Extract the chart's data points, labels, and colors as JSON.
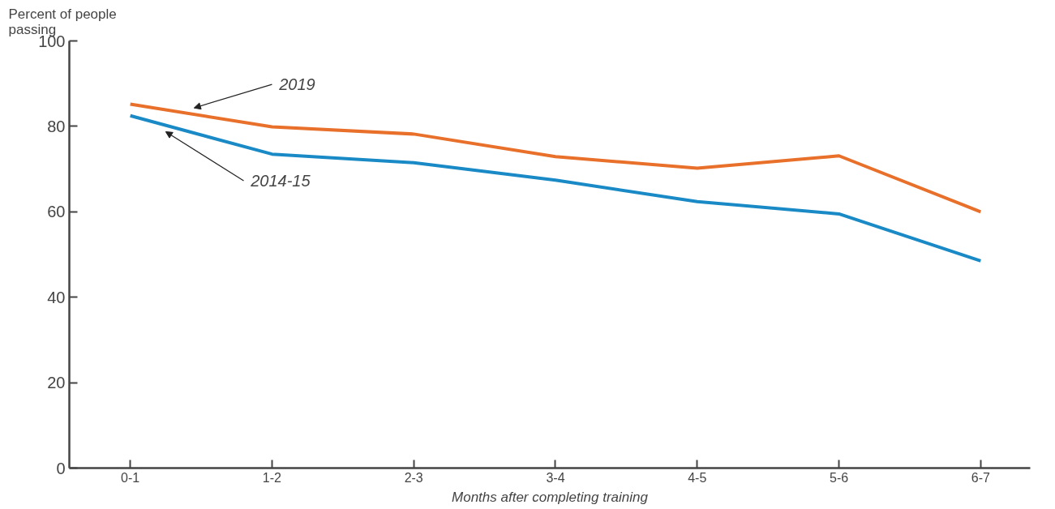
{
  "chart_data": {
    "type": "line",
    "xlabel": "Months after completing training",
    "ylabel": "Percent of people\npassing",
    "categories": [
      "0-1",
      "1-2",
      "2-3",
      "3-4",
      "4-5",
      "5-6",
      "6-7"
    ],
    "ylim": [
      0,
      100
    ],
    "yticks": [
      0,
      20,
      40,
      60,
      80,
      100
    ],
    "grid": false,
    "marker": "none",
    "line_style": "solid",
    "series": [
      {
        "name": "2019",
        "color": "#e8702a",
        "values": [
          85.2,
          79.9,
          78.2,
          72.9,
          70.2,
          73.1,
          60.0
        ]
      },
      {
        "name": "2014-15",
        "color": "#1a8ac6",
        "values": [
          82.5,
          73.5,
          71.5,
          67.4,
          62.4,
          59.5,
          48.5
        ]
      }
    ]
  }
}
